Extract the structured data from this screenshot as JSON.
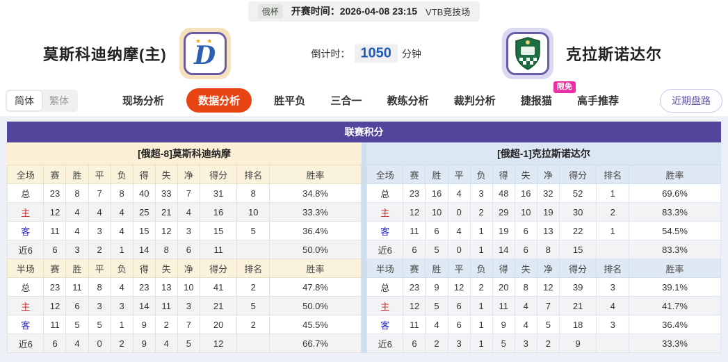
{
  "top_bar": {
    "league": "俄杯",
    "kickoff": "开赛时间：2026-04-08 23:15",
    "venue": "VTB竞技场"
  },
  "match": {
    "home_team": "莫斯科迪纳摩(主)",
    "away_team": "克拉斯诺达尔",
    "home_logo_icon": "dynamo-crest",
    "away_logo_icon": "krasnodar-crest",
    "countdown_label": "倒计时：",
    "countdown_value": "1050",
    "countdown_unit": "分钟"
  },
  "nav": {
    "lang": [
      "简体",
      "繁体"
    ],
    "tabs": [
      {
        "label": "现场分析",
        "active": false
      },
      {
        "label": "数据分析",
        "active": true
      },
      {
        "label": "胜平负",
        "active": false
      },
      {
        "label": "三合一",
        "active": false
      },
      {
        "label": "教练分析",
        "active": false
      },
      {
        "label": "裁判分析",
        "active": false
      },
      {
        "label": "捷报猫",
        "active": false,
        "badge": "限免"
      },
      {
        "label": "高手推荐",
        "active": false
      }
    ],
    "recent_button": "近期盘路"
  },
  "table": {
    "title": "联赛积分",
    "home_header": "[俄超-8]莫斯科迪纳摩",
    "away_header": "[俄超-1]克拉斯诺达尔",
    "stat_columns": [
      "赛",
      "胜",
      "平",
      "负",
      "得",
      "失",
      "净",
      "得分",
      "排名",
      "胜率"
    ],
    "sections": [
      {
        "key": "full",
        "header_label": "全场"
      },
      {
        "key": "half",
        "header_label": "半场"
      }
    ],
    "home": {
      "full": [
        {
          "label": "总",
          "values": [
            "23",
            "8",
            "7",
            "8",
            "40",
            "33",
            "7",
            "31",
            "8",
            "34.8%"
          ]
        },
        {
          "label": "主",
          "values": [
            "12",
            "4",
            "4",
            "4",
            "25",
            "21",
            "4",
            "16",
            "10",
            "33.3%"
          ]
        },
        {
          "label": "客",
          "values": [
            "11",
            "4",
            "3",
            "4",
            "15",
            "12",
            "3",
            "15",
            "5",
            "36.4%"
          ]
        },
        {
          "label": "近6",
          "values": [
            "6",
            "3",
            "2",
            "1",
            "14",
            "8",
            "6",
            "11",
            "",
            "50.0%"
          ]
        }
      ],
      "half": [
        {
          "label": "总",
          "values": [
            "23",
            "11",
            "8",
            "4",
            "23",
            "13",
            "10",
            "41",
            "2",
            "47.8%"
          ]
        },
        {
          "label": "主",
          "values": [
            "12",
            "6",
            "3",
            "3",
            "14",
            "11",
            "3",
            "21",
            "5",
            "50.0%"
          ]
        },
        {
          "label": "客",
          "values": [
            "11",
            "5",
            "5",
            "1",
            "9",
            "2",
            "7",
            "20",
            "2",
            "45.5%"
          ]
        },
        {
          "label": "近6",
          "values": [
            "6",
            "4",
            "0",
            "2",
            "9",
            "4",
            "5",
            "12",
            "",
            "66.7%"
          ]
        }
      ]
    },
    "away": {
      "full": [
        {
          "label": "总",
          "values": [
            "23",
            "16",
            "4",
            "3",
            "48",
            "16",
            "32",
            "52",
            "1",
            "69.6%"
          ]
        },
        {
          "label": "主",
          "values": [
            "12",
            "10",
            "0",
            "2",
            "29",
            "10",
            "19",
            "30",
            "2",
            "83.3%"
          ]
        },
        {
          "label": "客",
          "values": [
            "11",
            "6",
            "4",
            "1",
            "19",
            "6",
            "13",
            "22",
            "1",
            "54.5%"
          ]
        },
        {
          "label": "近6",
          "values": [
            "6",
            "5",
            "0",
            "1",
            "14",
            "6",
            "8",
            "15",
            "",
            "83.3%"
          ]
        }
      ],
      "half": [
        {
          "label": "总",
          "values": [
            "23",
            "9",
            "12",
            "2",
            "20",
            "8",
            "12",
            "39",
            "3",
            "39.1%"
          ]
        },
        {
          "label": "主",
          "values": [
            "12",
            "5",
            "6",
            "1",
            "11",
            "4",
            "7",
            "21",
            "4",
            "41.7%"
          ]
        },
        {
          "label": "客",
          "values": [
            "11",
            "4",
            "6",
            "1",
            "9",
            "4",
            "5",
            "18",
            "3",
            "36.4%"
          ]
        },
        {
          "label": "近6",
          "values": [
            "6",
            "2",
            "3",
            "1",
            "5",
            "3",
            "2",
            "9",
            "",
            "33.3%"
          ]
        }
      ]
    }
  },
  "colors": {
    "header_purple": "#52459c",
    "active_tab_orange": "#e84414",
    "badge_pink": "#ed2fa7",
    "countdown_blue": "#1d58b8",
    "home_row_red": "#c92b2b",
    "away_row_blue": "#2b2bc9",
    "home_header_cream": "#fbf0d5",
    "away_header_blue": "#dbe7f2"
  }
}
